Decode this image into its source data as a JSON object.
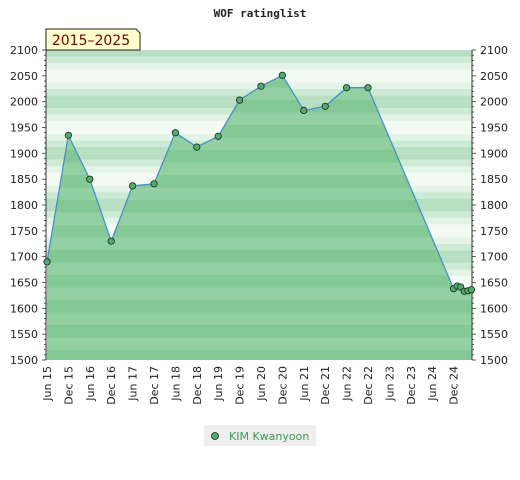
{
  "chart_data": {
    "type": "area",
    "title": "WOF ratinglist",
    "period_badge": "2015–2025",
    "ylim": [
      1500,
      2100
    ],
    "yticks": [
      1500,
      1550,
      1600,
      1650,
      1700,
      1750,
      1800,
      1850,
      1900,
      1950,
      2000,
      2050,
      2100
    ],
    "xticks": [
      "Jun 15",
      "Dec 15",
      "Jun 16",
      "Dec 16",
      "Jun 17",
      "Dec 17",
      "Jun 18",
      "Dec 18",
      "Jun 19",
      "Dec 19",
      "Jun 20",
      "Dec 20",
      "Jun 21",
      "Dec 21",
      "Jun 22",
      "Dec 22",
      "Jun 23",
      "Dec 23",
      "Jun 24",
      "Dec 24"
    ],
    "grid": true,
    "legend_position": "bottom",
    "series": [
      {
        "name": "KIM Kwanyoon",
        "color": "#4a8fc9",
        "marker_color": "#4caf6a",
        "x": [
          0,
          1,
          2,
          3,
          4,
          5,
          6,
          7,
          8,
          9,
          10,
          11,
          12,
          13,
          14,
          15,
          19,
          19.17,
          19.33,
          19.5,
          19.67,
          19.83
        ],
        "values": [
          1690,
          1935,
          1850,
          1730,
          1837,
          1841,
          1940,
          1912,
          1933,
          2003,
          2030,
          2051,
          1983,
          1991,
          2027,
          2027,
          1638,
          1643,
          1641,
          1633,
          1634,
          1636
        ]
      }
    ]
  }
}
